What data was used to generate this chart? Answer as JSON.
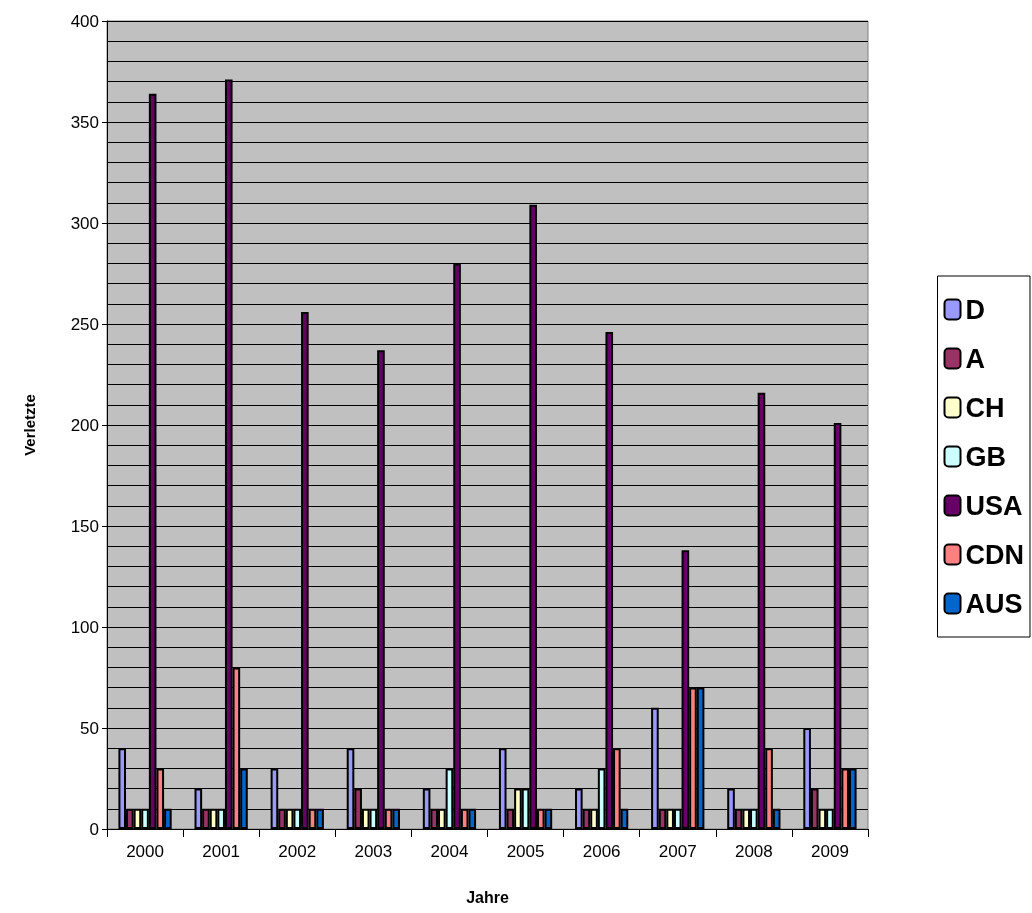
{
  "chart_data": {
    "type": "bar",
    "xlabel": "Jahre",
    "ylabel": "Verletzte",
    "categories": [
      "2000",
      "2001",
      "2002",
      "2003",
      "2004",
      "2005",
      "2006",
      "2007",
      "2008",
      "2009"
    ],
    "series": [
      {
        "name": "D",
        "color": "#9999ff",
        "values": [
          40,
          20,
          30,
          40,
          20,
          40,
          20,
          60,
          20,
          50
        ]
      },
      {
        "name": "A",
        "color": "#993366",
        "values": [
          10,
          10,
          10,
          20,
          10,
          10,
          10,
          10,
          10,
          20
        ]
      },
      {
        "name": "CH",
        "color": "#ffffcc",
        "values": [
          10,
          10,
          10,
          10,
          10,
          20,
          10,
          10,
          10,
          10
        ]
      },
      {
        "name": "GB",
        "color": "#ccffff",
        "values": [
          10,
          10,
          10,
          10,
          30,
          20,
          30,
          10,
          10,
          10
        ]
      },
      {
        "name": "USA",
        "color": "#660066",
        "values": [
          364,
          371,
          256,
          237,
          280,
          309,
          246,
          138,
          216,
          201
        ]
      },
      {
        "name": "CDN",
        "color": "#ff8080",
        "values": [
          30,
          80,
          10,
          10,
          10,
          10,
          40,
          70,
          40,
          30
        ]
      },
      {
        "name": "AUS",
        "color": "#0066cc",
        "values": [
          10,
          30,
          10,
          10,
          10,
          10,
          10,
          70,
          10,
          30
        ]
      }
    ],
    "ylim": [
      0,
      400
    ],
    "yticks": [
      0,
      50,
      100,
      150,
      200,
      250,
      300,
      350,
      400
    ],
    "grid": "y",
    "legend": "right"
  }
}
